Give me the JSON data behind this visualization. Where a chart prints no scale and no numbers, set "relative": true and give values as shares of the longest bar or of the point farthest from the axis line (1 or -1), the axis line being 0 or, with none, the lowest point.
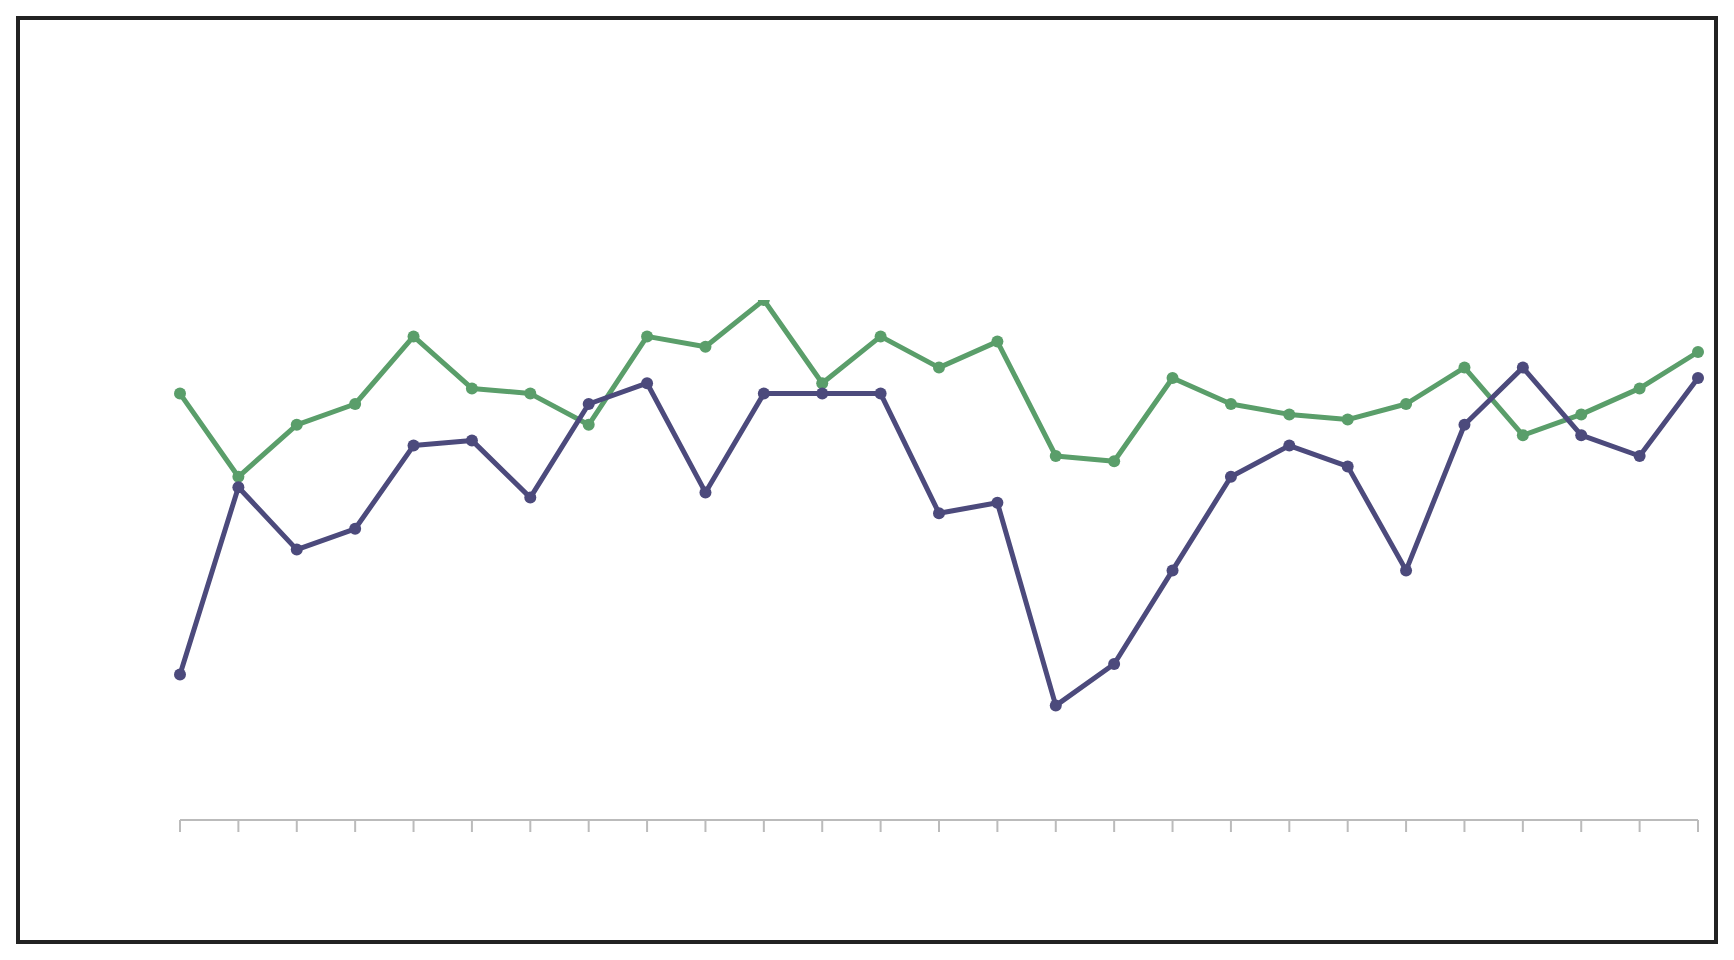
{
  "chart_data": {
    "type": "line",
    "relative": true,
    "categories": [
      null,
      null,
      null,
      null,
      null,
      null,
      null,
      null,
      null,
      null,
      null,
      null,
      null,
      null,
      null,
      null,
      null,
      null,
      null,
      null,
      null,
      null,
      null,
      null,
      null,
      null,
      null
    ],
    "series": [
      {
        "color": "#5a9e6a",
        "values": [
          0.82,
          0.66,
          0.76,
          0.8,
          0.93,
          0.83,
          0.82,
          0.76,
          0.93,
          0.91,
          1,
          0.84,
          0.93,
          0.87,
          0.92,
          0.7,
          0.69,
          0.85,
          0.8,
          0.78,
          0.77,
          0.8,
          0.87,
          0.74,
          0.78,
          0.83,
          0.9
        ]
      },
      {
        "color": "#4c4a7c",
        "values": [
          0.28,
          0.64,
          0.52,
          0.56,
          0.72,
          0.73,
          0.62,
          0.8,
          0.84,
          0.63,
          0.82,
          0.82,
          0.82,
          0.59,
          0.61,
          0.22,
          0.3,
          0.48,
          0.66,
          0.72,
          0.68,
          0.48,
          0.76,
          0.87,
          0.74,
          0.7,
          0.85
        ]
      }
    ],
    "marker": "circle",
    "grid": false,
    "legend": false
  }
}
